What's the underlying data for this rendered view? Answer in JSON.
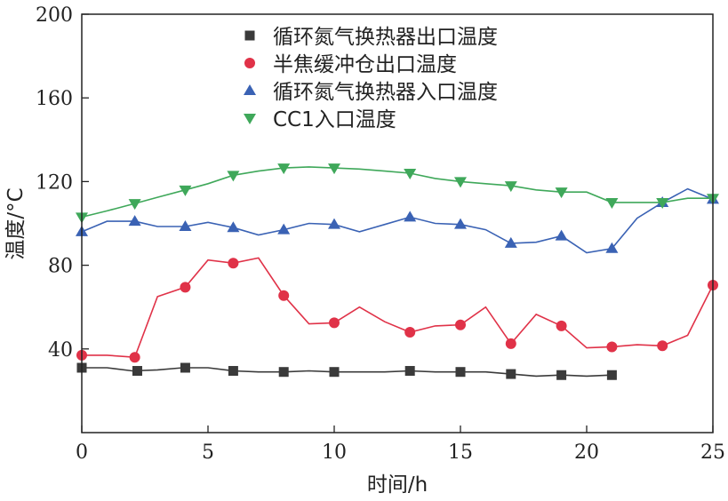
{
  "chart_data": {
    "type": "line",
    "title": "",
    "xlabel": "时间/h",
    "ylabel": "温度/°C",
    "xlim": [
      0,
      25
    ],
    "ylim": [
      0,
      200
    ],
    "xticks": [
      0,
      5,
      10,
      15,
      20,
      25
    ],
    "xtick_labels": [
      "0",
      "5",
      "10",
      "15",
      "20",
      "25"
    ],
    "yticks": [
      40,
      80,
      120,
      160,
      200
    ],
    "ytick_labels": [
      "40",
      "80",
      "120",
      "160",
      "200"
    ],
    "grid": false,
    "legend_position": "top-center",
    "series": [
      {
        "name": "循环氮气换热器出口温度",
        "color": "#3a3a3a",
        "marker": "square",
        "line": {
          "x": [
            0,
            1,
            2,
            3,
            4,
            5,
            6,
            7,
            8,
            9,
            10,
            11,
            12,
            13,
            14,
            15,
            16,
            17,
            18,
            19,
            20,
            21
          ],
          "y": [
            31,
            31,
            29.5,
            30,
            31,
            31,
            29.5,
            29,
            29,
            29.5,
            29,
            29,
            29,
            29.5,
            29,
            29,
            29,
            28,
            27,
            27.5,
            27,
            27.5
          ]
        },
        "markers": {
          "x": [
            0,
            2.2,
            4.1,
            6,
            8,
            10,
            13,
            15,
            17,
            19,
            21
          ],
          "y": [
            31,
            29.5,
            31,
            29.5,
            29,
            29,
            29.5,
            29,
            28,
            27.5,
            27.5
          ]
        }
      },
      {
        "name": "半焦缓冲仓出口温度",
        "color": "#e03248",
        "marker": "circle",
        "line": {
          "x": [
            0,
            1,
            2.1,
            3,
            4.1,
            5,
            6,
            7,
            8,
            9,
            10,
            11,
            12,
            13,
            14,
            15,
            16,
            17,
            18,
            19,
            20,
            21,
            22,
            23,
            24,
            25
          ],
          "y": [
            37,
            37,
            36,
            65,
            69.5,
            82.5,
            81,
            83.5,
            65.5,
            52,
            52.5,
            60,
            53,
            48,
            51,
            51.5,
            60,
            42.5,
            56.5,
            51,
            40.5,
            41,
            42,
            41.5,
            46.5,
            70.5
          ]
        },
        "markers": {
          "x": [
            0,
            2.1,
            4.1,
            6,
            8,
            10,
            13,
            15,
            17,
            19,
            21,
            23,
            25
          ],
          "y": [
            37,
            36,
            69.5,
            81,
            65.5,
            52.5,
            48,
            51.5,
            42.5,
            51,
            41,
            41.5,
            70.5
          ]
        }
      },
      {
        "name": "循环氮气换热器入口温度",
        "color": "#3a62b4",
        "marker": "triangle-up",
        "line": {
          "x": [
            0,
            1,
            2.1,
            3,
            4.1,
            5,
            6,
            7,
            8,
            9,
            10,
            11,
            12,
            13,
            14,
            15,
            16,
            17,
            18,
            19,
            20,
            21,
            22,
            23,
            24,
            25
          ],
          "y": [
            96,
            101,
            101,
            98.5,
            98.5,
            100.5,
            98,
            94.5,
            97,
            100,
            99.5,
            96,
            99.5,
            103,
            100,
            99.5,
            97,
            90.5,
            91,
            94,
            86,
            88,
            102.5,
            110,
            116.5,
            111.5
          ]
        },
        "markers": {
          "x": [
            0,
            2.1,
            4.1,
            6,
            8,
            10,
            13,
            15,
            17,
            19,
            21,
            23,
            25
          ],
          "y": [
            96,
            101,
            98.5,
            98,
            97,
            99.5,
            103,
            99.5,
            90.5,
            94,
            88,
            110,
            111.5
          ]
        }
      },
      {
        "name": "CC1入口温度",
        "color": "#3fa85a",
        "marker": "triangle-down",
        "line": {
          "x": [
            0,
            1,
            2.1,
            3,
            4.1,
            5,
            6,
            7,
            8,
            9,
            10,
            11,
            12,
            13,
            14,
            15,
            16,
            17,
            18,
            19,
            20,
            21,
            22,
            23,
            24,
            25
          ],
          "y": [
            103,
            106,
            109.5,
            112.5,
            116,
            119,
            123,
            125,
            126.5,
            127,
            126.5,
            126,
            125,
            124,
            121.5,
            120,
            119,
            118,
            116,
            115,
            115,
            110,
            110,
            110,
            112,
            112
          ]
        },
        "markers": {
          "x": [
            0,
            2.1,
            4.1,
            6,
            8,
            10,
            13,
            15,
            17,
            19,
            21,
            23,
            25
          ],
          "y": [
            103,
            109.5,
            116,
            123,
            126.5,
            126.5,
            124,
            120,
            118,
            115,
            110,
            110,
            112
          ]
        }
      }
    ]
  }
}
